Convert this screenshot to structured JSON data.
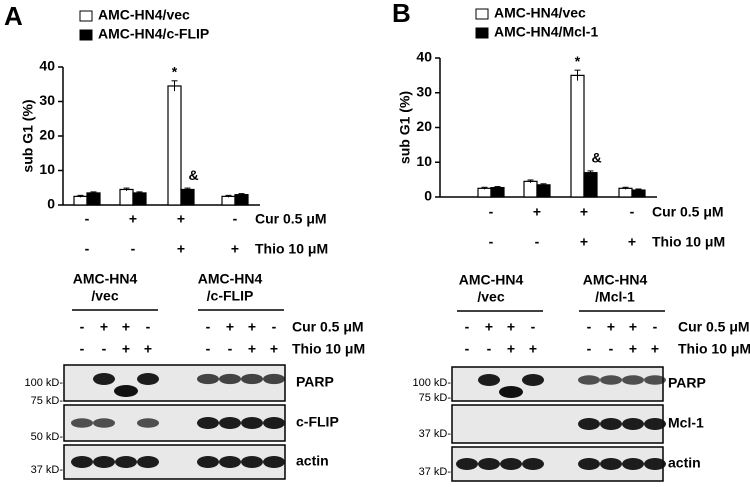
{
  "chart_data": [
    {
      "type": "bar",
      "panel_label": "A",
      "y_label": "sub G1 (%)",
      "categories": [
        null,
        null,
        null,
        null
      ],
      "series": [
        {
          "name": "AMC-HN4/vec",
          "color": "#ffffff",
          "values": [
            2.5,
            4.5,
            34.5,
            2.5
          ],
          "errors": [
            0.3,
            0.4,
            1.5,
            0.3
          ]
        },
        {
          "name": "AMC-HN4/c-FLIP",
          "color": "#000000",
          "values": [
            3.5,
            3.5,
            4.5,
            3
          ],
          "errors": [
            0.3,
            0.3,
            0.4,
            0.3
          ]
        }
      ],
      "ylim": [
        0,
        40
      ],
      "yticks": [
        0,
        10,
        20,
        30,
        40
      ],
      "annotations": [
        "*",
        "&"
      ],
      "conditions": [
        {
          "label": "Cur 0.5 μM",
          "signs": [
            "-",
            "+",
            "+",
            "-"
          ]
        },
        {
          "label": "Thio 10 μM",
          "signs": [
            "-",
            "-",
            "+",
            "+"
          ]
        }
      ]
    },
    {
      "type": "bar",
      "panel_label": "B",
      "y_label": "sub G1 (%)",
      "categories": [
        null,
        null,
        null,
        null
      ],
      "series": [
        {
          "name": "AMC-HN4/vec",
          "color": "#ffffff",
          "values": [
            2.5,
            4.5,
            35,
            2.5
          ],
          "errors": [
            0.3,
            0.4,
            1.5,
            0.3
          ]
        },
        {
          "name": "AMC-HN4/Mcl-1",
          "color": "#000000",
          "values": [
            2.7,
            3.5,
            7,
            2
          ],
          "errors": [
            0.3,
            0.3,
            0.5,
            0.3
          ]
        }
      ],
      "ylim": [
        0,
        40
      ],
      "yticks": [
        0,
        10,
        20,
        30,
        40
      ],
      "annotations": [
        "*",
        "&"
      ],
      "conditions": [
        {
          "label": "Cur 0.5 μM",
          "signs": [
            "-",
            "+",
            "+",
            "-"
          ]
        },
        {
          "label": "Thio 10 μM",
          "signs": [
            "-",
            "-",
            "+",
            "+"
          ]
        }
      ]
    }
  ],
  "blots": [
    {
      "groups": [
        {
          "label_lines": [
            "AMC-HN4",
            "/vec"
          ],
          "cur": [
            "-",
            "+",
            "+",
            "-"
          ],
          "thio": [
            "-",
            "-",
            "+",
            "+"
          ]
        },
        {
          "label_lines": [
            "AMC-HN4",
            "/c-FLIP"
          ],
          "cur": [
            "-",
            "+",
            "+",
            "-"
          ],
          "thio": [
            "-",
            "-",
            "+",
            "+"
          ]
        }
      ],
      "conditions": [
        "Cur 0.5 μM",
        "Thio 10 μM"
      ],
      "rows": [
        {
          "label": "PARP",
          "markers": [
            "100 kD-",
            "75 kD-"
          ]
        },
        {
          "label": "c-FLIP",
          "markers": [
            "50 kD-"
          ]
        },
        {
          "label": "actin",
          "markers": [
            "37 kD-"
          ]
        }
      ]
    },
    {
      "groups": [
        {
          "label_lines": [
            "AMC-HN4",
            "/vec"
          ],
          "cur": [
            "-",
            "+",
            "+",
            "-"
          ],
          "thio": [
            "-",
            "-",
            "+",
            "+"
          ]
        },
        {
          "label_lines": [
            "AMC-HN4",
            "/Mcl-1"
          ],
          "cur": [
            "-",
            "+",
            "+",
            "-"
          ],
          "thio": [
            "-",
            "-",
            "+",
            "+"
          ]
        }
      ],
      "conditions": [
        "Cur 0.5 μM",
        "Thio 10 μM"
      ],
      "rows": [
        {
          "label": "PARP",
          "markers": [
            "100 kD-",
            "75 kD-"
          ]
        },
        {
          "label": "Mcl-1",
          "markers": [
            "37 kD-"
          ]
        },
        {
          "label": "actin",
          "markers": [
            "37 kD-"
          ]
        }
      ]
    }
  ]
}
